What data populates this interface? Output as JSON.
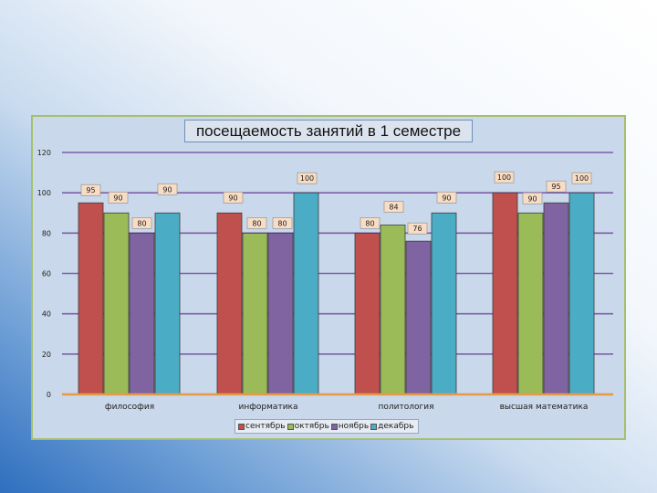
{
  "chart_data": {
    "type": "bar",
    "title": "посещаемость занятий в 1 семестре",
    "categories": [
      "философия",
      "информатика",
      "политология",
      "высшая математика"
    ],
    "series": [
      {
        "name": "сентябрь",
        "color": "#c0504d",
        "values": [
          95,
          90,
          80,
          100
        ]
      },
      {
        "name": "октябрь",
        "color": "#9bbb59",
        "values": [
          90,
          80,
          84,
          90
        ]
      },
      {
        "name": "ноябрь",
        "color": "#8064a2",
        "values": [
          80,
          80,
          76,
          95
        ]
      },
      {
        "name": "декабрь",
        "color": "#4bacc6",
        "values": [
          90,
          100,
          90,
          100
        ]
      }
    ],
    "ylim": [
      0,
      120
    ],
    "yticks": [
      0,
      20,
      40,
      60,
      80,
      100,
      120
    ],
    "grid": true,
    "legend": "bottom",
    "gridline_color": "#7d5ea8",
    "baseline_color": "#e59a4a",
    "label_box_color": "#f8dcc4"
  }
}
